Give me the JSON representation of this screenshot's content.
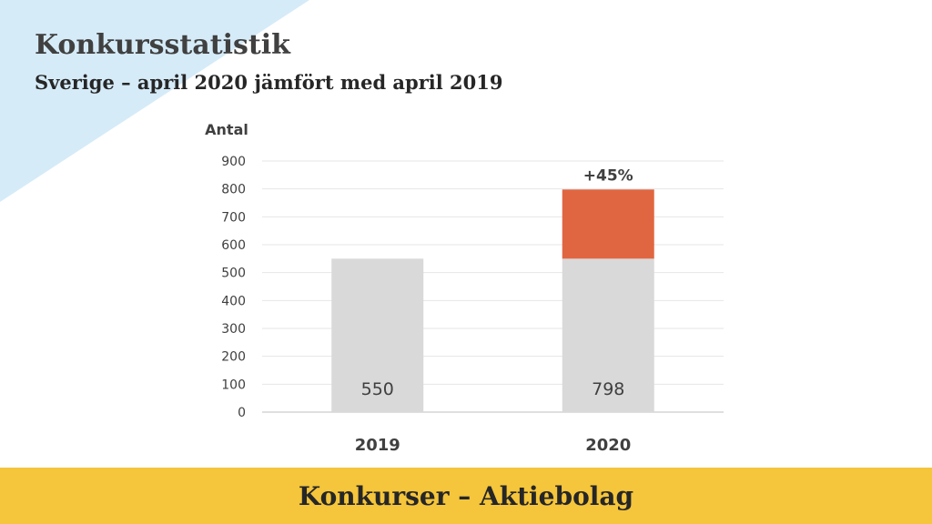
{
  "title": "Konkursstatistik",
  "subtitle": "Sverige – april 2020 jämfört med april 2019",
  "footer": "Konkurser – Aktiebolag",
  "colors": {
    "base_bar": "#d9d9d9",
    "increase_bar": "#e06641",
    "corner": "#d6ebf8",
    "footer": "#f5c53b"
  },
  "chart_data": {
    "type": "bar",
    "stacked": true,
    "ylabel": "Antal",
    "ylim": [
      0,
      900
    ],
    "yticks": [
      "0",
      "100",
      "200",
      "300",
      "400",
      "500",
      "600",
      "700",
      "800",
      "900"
    ],
    "grid": true,
    "categories": [
      "2019",
      "2020"
    ],
    "series": [
      {
        "values": [
          550,
          550
        ]
      },
      {
        "values": [
          0,
          248
        ]
      }
    ],
    "value_labels": [
      "550",
      "798"
    ],
    "annotation": "+45%"
  }
}
